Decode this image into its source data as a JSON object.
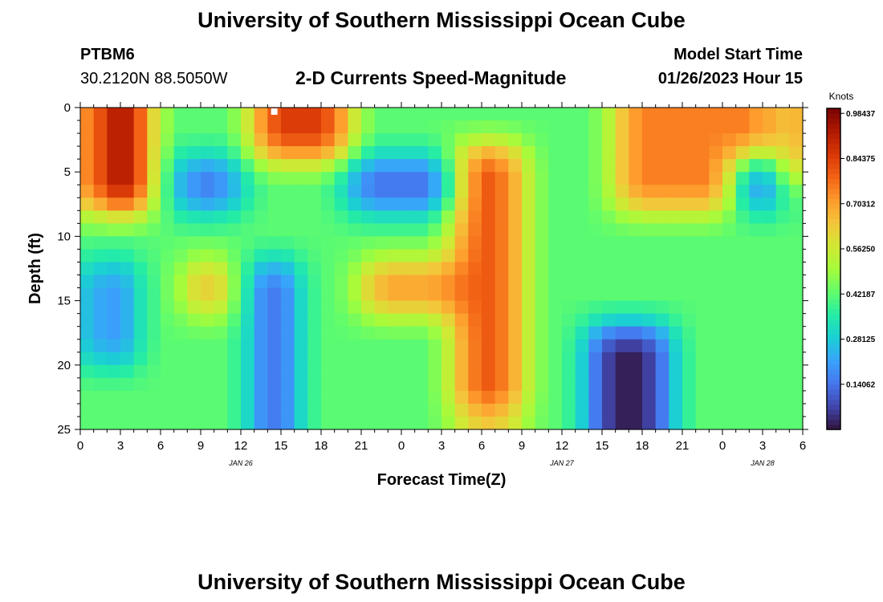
{
  "header": {
    "title": "University of Southern Mississippi Ocean Cube",
    "station": "PTBM6",
    "coords": "30.2120N  88.5050W",
    "subtitle": "2-D Currents Speed-Magnitude",
    "model_label": "Model Start Time",
    "model_time": "01/26/2023 Hour 15"
  },
  "footer": {
    "title": "University of Southern Mississippi Ocean Cube"
  },
  "colors": {
    "background": "#ffffff",
    "text": "#000000",
    "colormap": [
      "#30123b",
      "#4145ab",
      "#4675ed",
      "#39a2fc",
      "#1bcfd4",
      "#24eca6",
      "#61fc6c",
      "#a4fc3b",
      "#d1e834",
      "#f3c63a",
      "#fe9b2d",
      "#f36315",
      "#d93806",
      "#b11901",
      "#7a0402"
    ]
  },
  "chart_data": {
    "type": "heatmap",
    "xlabel": "Forecast Time(Z)",
    "ylabel": "Depth (ft)",
    "xlim": [
      0,
      54
    ],
    "ylim": [
      25,
      0
    ],
    "x_ticks": [
      {
        "hours": 0,
        "label": "0"
      },
      {
        "hours": 3,
        "label": "3"
      },
      {
        "hours": 6,
        "label": "6"
      },
      {
        "hours": 9,
        "label": "9"
      },
      {
        "hours": 12,
        "label": "12"
      },
      {
        "hours": 15,
        "label": "15"
      },
      {
        "hours": 18,
        "label": "18"
      },
      {
        "hours": 21,
        "label": "21"
      },
      {
        "hours": 24,
        "label": "0"
      },
      {
        "hours": 27,
        "label": "3"
      },
      {
        "hours": 30,
        "label": "6"
      },
      {
        "hours": 33,
        "label": "9"
      },
      {
        "hours": 36,
        "label": "12"
      },
      {
        "hours": 39,
        "label": "15"
      },
      {
        "hours": 42,
        "label": "18"
      },
      {
        "hours": 45,
        "label": "21"
      },
      {
        "hours": 48,
        "label": "0"
      },
      {
        "hours": 51,
        "label": "3"
      },
      {
        "hours": 54,
        "label": "6"
      }
    ],
    "date_labels": [
      {
        "hours": 12,
        "label": "JAN 26"
      },
      {
        "hours": 36,
        "label": "JAN 27"
      },
      {
        "hours": 51,
        "label": "JAN 28"
      }
    ],
    "y_ticks": [
      0,
      5,
      10,
      15,
      20,
      25
    ],
    "colorbar": {
      "label": "Knots",
      "min": 0.0,
      "max": 1.0,
      "ticks": [
        "0.98437",
        "0.84375",
        "0.70312",
        "0.56250",
        "0.42187",
        "0.28125",
        "0.14062"
      ],
      "tick_values": [
        0.98437,
        0.84375,
        0.70312,
        0.5625,
        0.42187,
        0.28125,
        0.14062
      ]
    },
    "features": [
      {
        "region": "surface",
        "depth_range_ft": [
          0,
          8
        ],
        "hours_range": [
          1,
          5
        ],
        "speed_knots": 0.97
      },
      {
        "region": "surface",
        "depth_range_ft": [
          0,
          4
        ],
        "hours_range": [
          13,
          20
        ],
        "speed_knots": 0.85
      },
      {
        "region": "mid",
        "depth_range_ft": [
          4,
          8
        ],
        "hours_range": [
          7.5,
          12
        ],
        "speed_knots": 0.14
      },
      {
        "region": "mid",
        "depth_range_ft": [
          4,
          8
        ],
        "hours_range": [
          20,
          28
        ],
        "speed_knots": 0.12
      },
      {
        "region": "deep",
        "depth_range_ft": [
          12,
          20
        ],
        "hours_range": [
          1.5,
          3.5
        ],
        "speed_knots": 0.15
      },
      {
        "region": "deep",
        "depth_range_ft": [
          12,
          16
        ],
        "hours_range": [
          8,
          11
        ],
        "speed_knots": 0.7
      },
      {
        "region": "deep",
        "depth_range_ft": [
          12,
          25
        ],
        "hours_range": [
          13.5,
          16
        ],
        "speed_knots": 0.08
      },
      {
        "region": "deep",
        "depth_range_ft": [
          12,
          16
        ],
        "hours_range": [
          21,
          28
        ],
        "speed_knots": 0.72
      },
      {
        "region": "column",
        "depth_range_ft": [
          3,
          24
        ],
        "hours_range": [
          28,
          33
        ],
        "speed_knots": 0.8
      },
      {
        "region": "deep",
        "depth_range_ft": [
          17,
          25
        ],
        "hours_range": [
          38,
          44
        ],
        "speed_knots": 0.02
      },
      {
        "region": "surface",
        "depth_range_ft": [
          0,
          8
        ],
        "hours_range": [
          40,
          52
        ],
        "speed_knots": 0.75
      },
      {
        "region": "mid",
        "depth_range_ft": [
          4,
          8
        ],
        "hours_range": [
          49,
          52
        ],
        "speed_knots": 0.12
      },
      {
        "region": "surface",
        "depth_range_ft": [
          0,
          6
        ],
        "hours_range": [
          53,
          54
        ],
        "speed_knots": 0.88
      }
    ],
    "grid_resolution": {
      "hours_step": 1,
      "depth_step_ft": 1
    },
    "grid_values": "24 x 54 smoothed field composed from the features listed above"
  }
}
